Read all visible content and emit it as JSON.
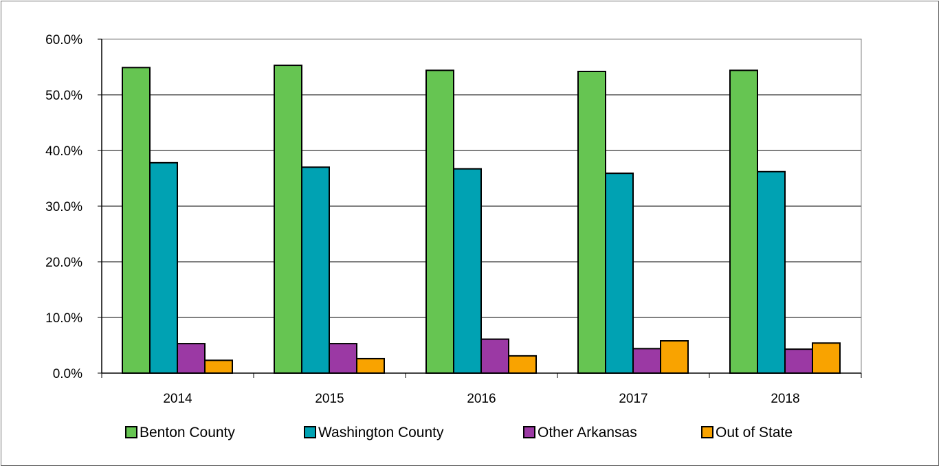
{
  "chart_data": {
    "type": "bar",
    "title": "",
    "xlabel": "",
    "ylabel": "",
    "categories": [
      "2014",
      "2015",
      "2016",
      "2017",
      "2018"
    ],
    "ylim": [
      0,
      60
    ],
    "y_ticks": [
      0,
      10,
      20,
      30,
      40,
      50,
      60
    ],
    "y_tick_labels": [
      "0.0%",
      "10.0%",
      "20.0%",
      "30.0%",
      "40.0%",
      "50.0%",
      "60.0%"
    ],
    "grid": "horizontal",
    "legend_position": "bottom",
    "series": [
      {
        "name": "Benton County",
        "color": "#66c552",
        "values": [
          54.9,
          55.3,
          54.4,
          54.2,
          54.4
        ]
      },
      {
        "name": "Washington County",
        "color": "#00a2b3",
        "values": [
          37.8,
          37.0,
          36.7,
          35.9,
          36.2
        ]
      },
      {
        "name": "Other Arkansas",
        "color": "#9b39a4",
        "values": [
          5.3,
          5.3,
          6.1,
          4.4,
          4.3
        ]
      },
      {
        "name": "Out of State",
        "color": "#f9a300",
        "values": [
          2.3,
          2.6,
          3.1,
          5.8,
          5.4
        ]
      }
    ]
  }
}
